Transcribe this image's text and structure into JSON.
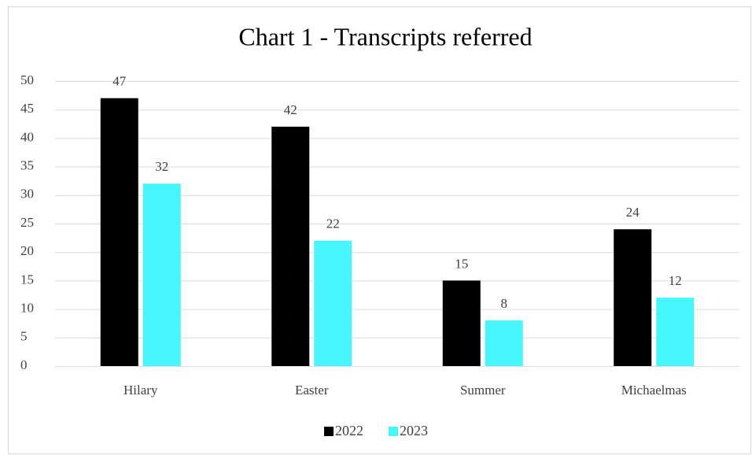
{
  "chart_data": {
    "type": "bar",
    "title": "Chart 1 - Transcripts referred",
    "categories": [
      "Hilary",
      "Easter",
      "Summer",
      "Michaelmas"
    ],
    "series": [
      {
        "name": "2022",
        "color": "#000000",
        "values": [
          47,
          42,
          15,
          24
        ]
      },
      {
        "name": "2023",
        "color": "#45f6fc",
        "values": [
          32,
          22,
          8,
          12
        ]
      }
    ],
    "ylim": [
      0,
      50
    ],
    "yticks": [
      0,
      5,
      10,
      15,
      20,
      25,
      30,
      35,
      40,
      45,
      50
    ],
    "grid": true,
    "legend": "bottom"
  }
}
